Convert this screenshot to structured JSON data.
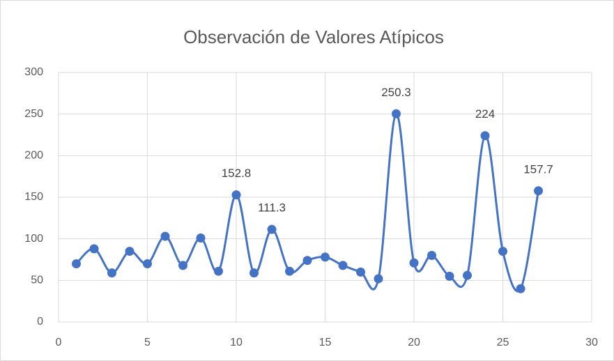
{
  "chart_data": {
    "type": "scatter",
    "title": "Observación de Valores Atípicos",
    "series": [
      {
        "color": "#4472c4",
        "x": [
          1,
          2,
          3,
          4,
          5,
          6,
          7,
          8,
          9,
          10,
          11,
          12,
          13,
          14,
          15,
          16,
          17,
          18,
          19,
          20,
          21,
          22,
          23,
          24,
          25,
          26,
          27
        ],
        "values": [
          70,
          88,
          59,
          85,
          70,
          103,
          68,
          101,
          61,
          152.8,
          59,
          111.3,
          61,
          74,
          78,
          68,
          60,
          52,
          250.3,
          71,
          80,
          55,
          56,
          224,
          85,
          40,
          157.7
        ],
        "value_labels": [
          null,
          null,
          null,
          null,
          null,
          null,
          null,
          null,
          null,
          "152.8",
          null,
          "111.3",
          null,
          null,
          null,
          null,
          null,
          null,
          "250.3",
          null,
          null,
          null,
          null,
          "224",
          null,
          null,
          "157.7"
        ]
      }
    ],
    "xlim": [
      0,
      30
    ],
    "xticks": [
      0,
      5,
      10,
      15,
      20,
      25,
      30
    ],
    "ylim": [
      0,
      300
    ],
    "yticks": [
      0,
      50,
      100,
      150,
      200,
      250,
      300
    ],
    "grid": true,
    "smooth": true
  }
}
